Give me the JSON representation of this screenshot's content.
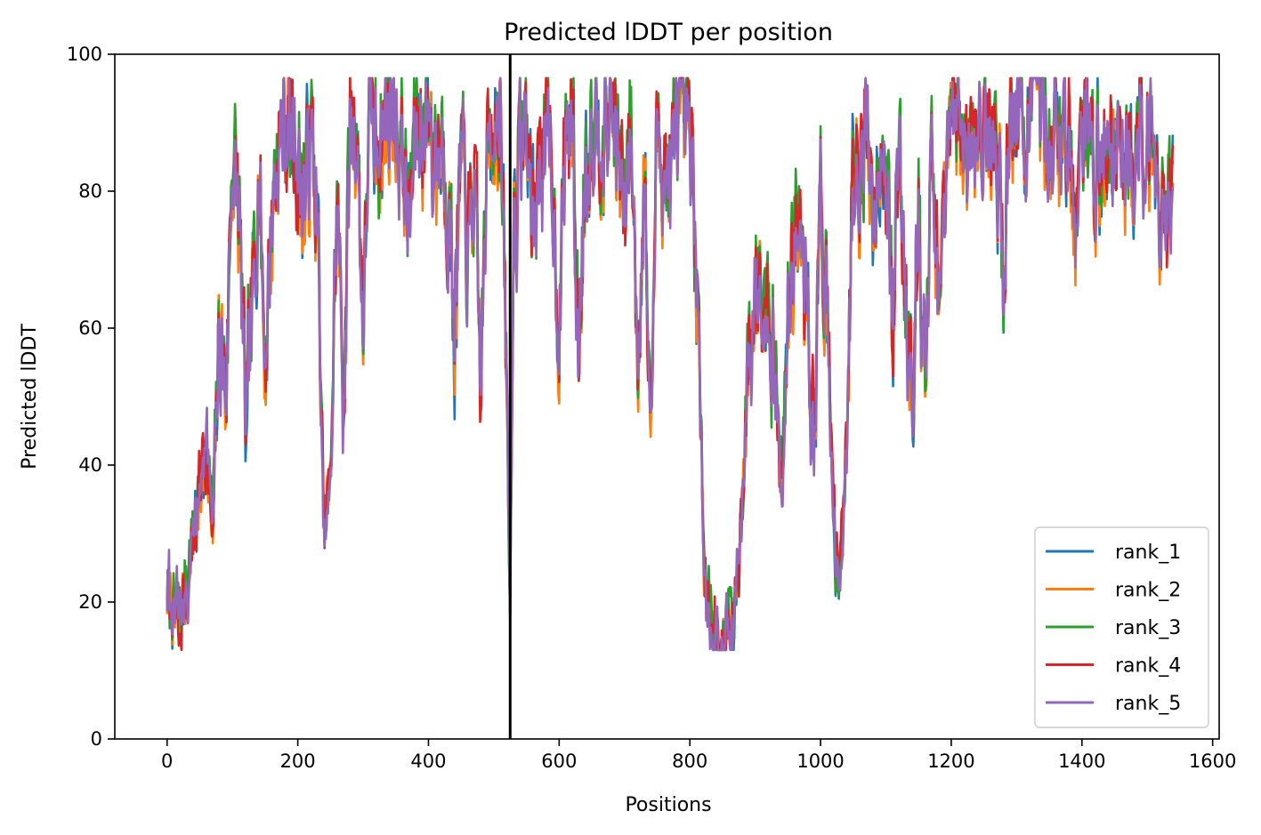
{
  "chart_data": {
    "type": "line",
    "title": "Predicted lDDT per position",
    "xlabel": "Positions",
    "ylabel": "Predicted lDDT",
    "xlim": [
      -80,
      1610
    ],
    "ylim": [
      0,
      100
    ],
    "xticks": [
      0,
      200,
      400,
      600,
      800,
      1000,
      1200,
      1400,
      1600
    ],
    "yticks": [
      0,
      20,
      40,
      60,
      80,
      100
    ],
    "grid": false,
    "legend_position": "lower-right",
    "chain_break": 525,
    "series_length": 1540,
    "colors": {
      "rank_1": "#1f77b4",
      "rank_2": "#ff7f0e",
      "rank_3": "#2ca02c",
      "rank_4": "#d62728",
      "rank_5": "#9467bd",
      "chain_break": "#000000"
    },
    "profile": {
      "x": [
        0,
        10,
        20,
        30,
        40,
        50,
        60,
        70,
        80,
        90,
        100,
        110,
        120,
        130,
        140,
        150,
        160,
        170,
        180,
        190,
        200,
        210,
        220,
        230,
        240,
        250,
        260,
        270,
        280,
        290,
        300,
        310,
        320,
        330,
        340,
        350,
        360,
        370,
        380,
        390,
        400,
        410,
        420,
        430,
        440,
        450,
        460,
        470,
        480,
        490,
        500,
        510,
        520,
        525,
        530,
        540,
        550,
        560,
        570,
        580,
        590,
        600,
        610,
        620,
        630,
        640,
        650,
        660,
        670,
        680,
        690,
        700,
        710,
        720,
        730,
        740,
        750,
        760,
        770,
        780,
        790,
        800,
        810,
        820,
        830,
        840,
        850,
        860,
        870,
        880,
        890,
        900,
        910,
        920,
        930,
        940,
        950,
        960,
        970,
        980,
        990,
        1000,
        1010,
        1020,
        1030,
        1040,
        1050,
        1060,
        1070,
        1080,
        1090,
        1100,
        1110,
        1120,
        1130,
        1140,
        1150,
        1160,
        1170,
        1180,
        1190,
        1200,
        1210,
        1220,
        1230,
        1240,
        1250,
        1260,
        1270,
        1280,
        1290,
        1300,
        1310,
        1320,
        1330,
        1340,
        1350,
        1360,
        1370,
        1380,
        1390,
        1400,
        1410,
        1420,
        1430,
        1440,
        1450,
        1460,
        1470,
        1480,
        1490,
        1500,
        1510,
        1520,
        1530,
        1540
      ],
      "y": [
        22,
        19,
        18,
        22,
        30,
        35,
        45,
        30,
        60,
        50,
        85,
        75,
        45,
        60,
        85,
        55,
        75,
        87,
        90,
        88,
        85,
        80,
        88,
        75,
        30,
        35,
        80,
        50,
        88,
        90,
        60,
        92,
        85,
        90,
        92,
        90,
        85,
        75,
        88,
        90,
        92,
        85,
        88,
        80,
        60,
        85,
        70,
        80,
        50,
        85,
        92,
        92,
        50,
        18,
        75,
        85,
        88,
        75,
        85,
        88,
        80,
        60,
        88,
        90,
        55,
        85,
        90,
        92,
        88,
        92,
        85,
        75,
        90,
        55,
        85,
        45,
        88,
        85,
        80,
        90,
        88,
        85,
        70,
        30,
        17,
        15,
        14,
        15,
        20,
        35,
        55,
        65,
        70,
        65,
        55,
        35,
        60,
        75,
        70,
        60,
        45,
        80,
        60,
        30,
        25,
        40,
        88,
        85,
        90,
        78,
        88,
        85,
        60,
        85,
        65,
        55,
        75,
        50,
        85,
        60,
        80,
        88,
        92,
        85,
        90,
        88,
        93,
        85,
        88,
        70,
        90,
        92,
        88,
        90,
        93,
        92,
        90,
        88,
        85,
        88,
        80,
        90,
        88,
        85,
        80,
        90,
        88,
        85,
        88,
        80,
        90,
        88,
        85,
        80,
        78,
        78
      ]
    },
    "series": [
      {
        "name": "rank_1",
        "offset": 0.0,
        "seed": 11
      },
      {
        "name": "rank_2",
        "offset": -0.6,
        "seed": 23
      },
      {
        "name": "rank_3",
        "offset": 1.4,
        "seed": 37
      },
      {
        "name": "rank_4",
        "offset": 0.6,
        "seed": 49
      },
      {
        "name": "rank_5",
        "offset": -0.3,
        "seed": 61
      }
    ]
  }
}
